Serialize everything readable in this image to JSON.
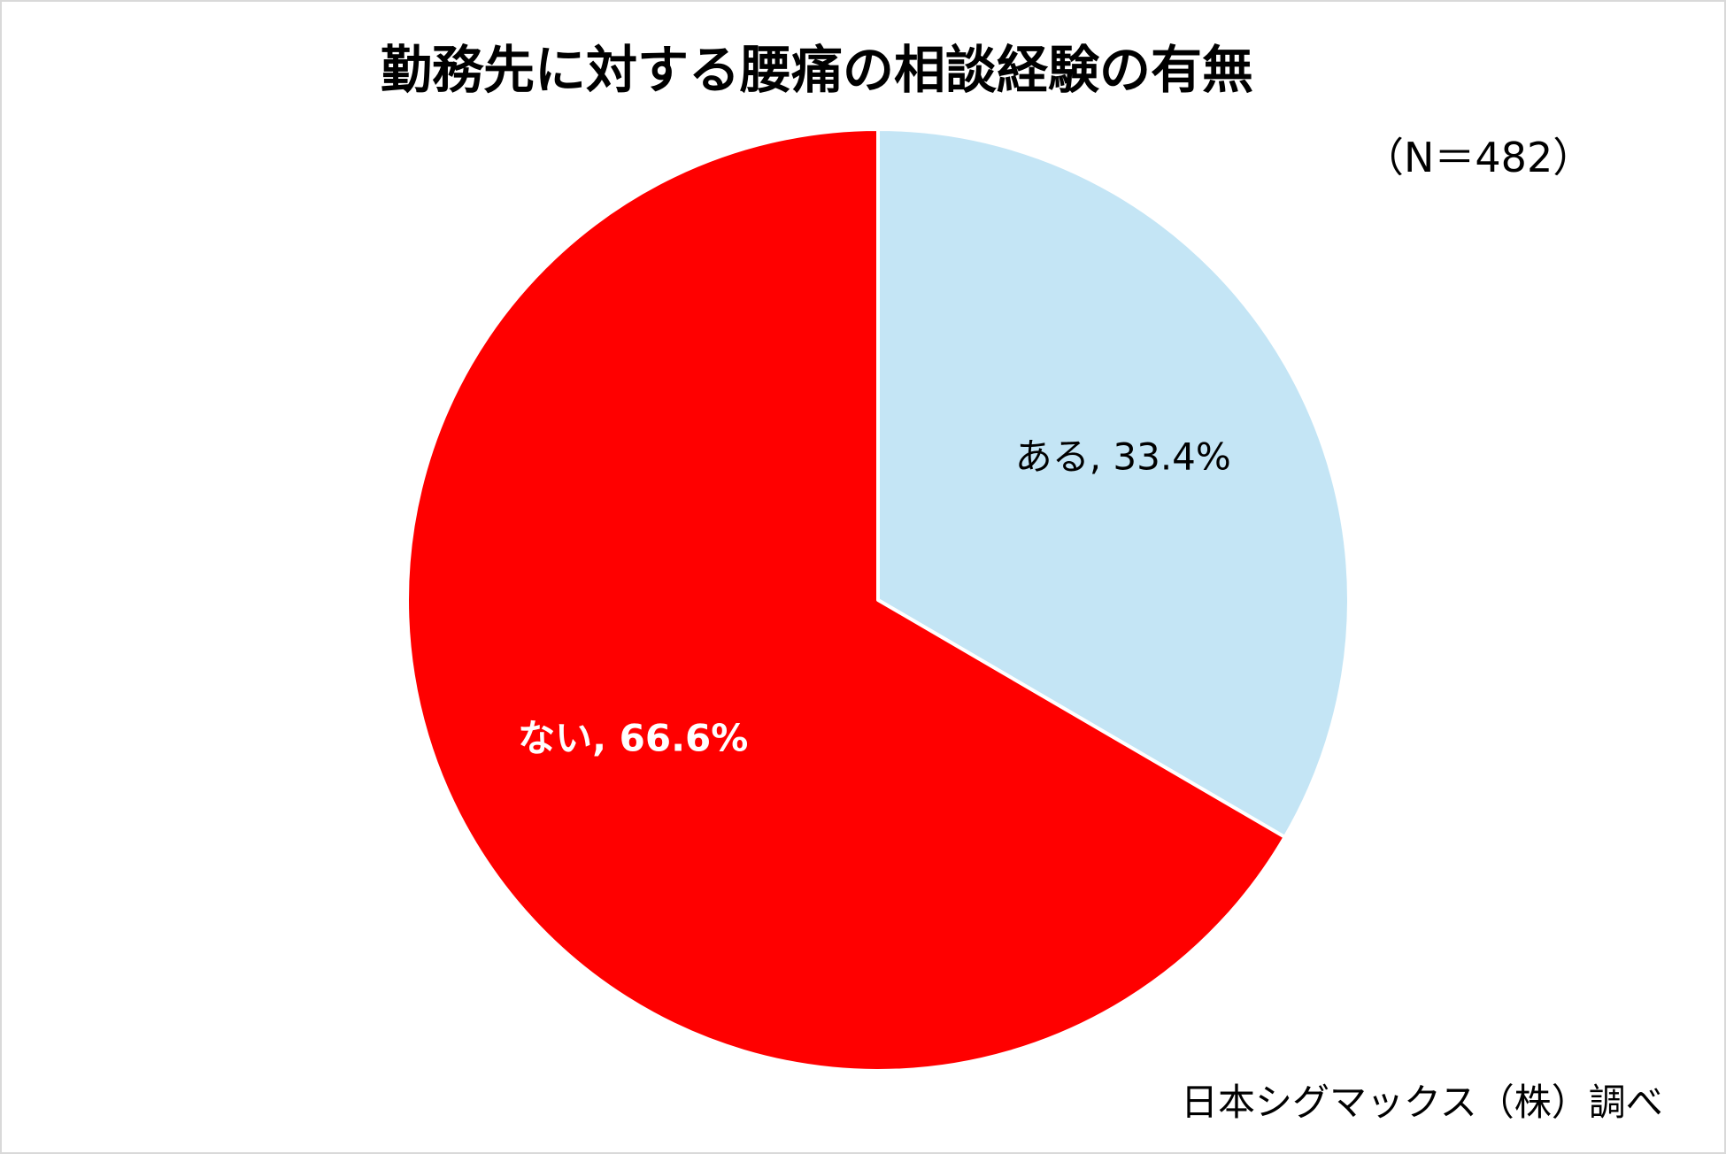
{
  "chart_data": {
    "type": "pie",
    "title": "勤務先に対する腰痛の相談経験の有無",
    "sample_size": "（N＝482）",
    "source": "日本シグマックス（株）調べ",
    "slices": [
      {
        "label": "ある",
        "value": 33.4,
        "display": "ある, 33.4%",
        "color": "#c4e5f5",
        "label_color": "#000000"
      },
      {
        "label": "ない",
        "value": 66.6,
        "display": "ない, 66.6%",
        "color": "#ff0000",
        "label_color": "#ffffff"
      }
    ],
    "start_angle_deg": 0,
    "direction": "clockwise",
    "slice_border_color": "#ffffff"
  }
}
